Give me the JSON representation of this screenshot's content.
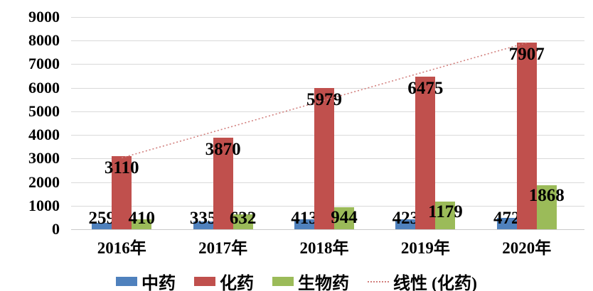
{
  "chart_data": {
    "type": "bar",
    "categories": [
      "2016年",
      "2017年",
      "2018年",
      "2019年",
      "2020年"
    ],
    "series": [
      {
        "name": "中药",
        "color": "#4F81BD",
        "values": [
          259,
          335,
          413,
          423,
          472
        ]
      },
      {
        "name": "化药",
        "color": "#C0504D",
        "values": [
          3110,
          3870,
          5979,
          6475,
          7907
        ]
      },
      {
        "name": "生物药",
        "color": "#9BBB59",
        "values": [
          410,
          632,
          944,
          1179,
          1868
        ]
      }
    ],
    "trendline": {
      "name": "线性 (化药)",
      "target_series": "化药",
      "type": "linear",
      "color": "#D2807E",
      "style": "dotted"
    },
    "title": "",
    "xlabel": "",
    "ylabel": "",
    "ylim": [
      0,
      9000
    ],
    "yticks": [
      0,
      1000,
      2000,
      3000,
      4000,
      5000,
      6000,
      7000,
      8000,
      9000
    ],
    "grid": true,
    "grid_color": "#D9D9D9",
    "axis_line_color": "#C9C9C9",
    "legend_position": "bottom",
    "legend_entries": [
      "中药",
      "化药",
      "生物药",
      "线性 (化药)"
    ]
  }
}
